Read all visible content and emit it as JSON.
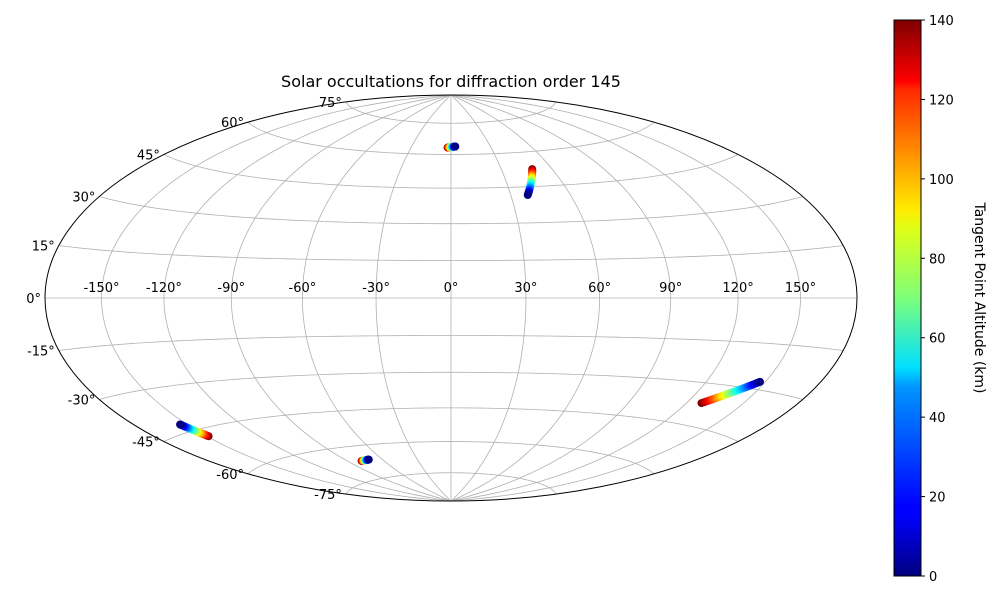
{
  "chart_data": {
    "type": "scatter",
    "projection": "hammer",
    "title": "Solar occultations for diffraction order 145",
    "grid": true,
    "lon_ticks": [
      {
        "value": -150,
        "label": "-150°"
      },
      {
        "value": -120,
        "label": "-120°"
      },
      {
        "value": -90,
        "label": "-90°"
      },
      {
        "value": -60,
        "label": "-60°"
      },
      {
        "value": -30,
        "label": "-30°"
      },
      {
        "value": 0,
        "label": "0°"
      },
      {
        "value": 30,
        "label": "30°"
      },
      {
        "value": 60,
        "label": "60°"
      },
      {
        "value": 90,
        "label": "90°"
      },
      {
        "value": 120,
        "label": "120°"
      },
      {
        "value": 150,
        "label": "150°"
      }
    ],
    "lat_ticks": [
      {
        "value": 75,
        "label": "75°"
      },
      {
        "value": 60,
        "label": "60°"
      },
      {
        "value": 45,
        "label": "45°"
      },
      {
        "value": 30,
        "label": "30°"
      },
      {
        "value": 15,
        "label": "15°"
      },
      {
        "value": 0,
        "label": "0°"
      },
      {
        "value": -15,
        "label": "-15°"
      },
      {
        "value": -30,
        "label": "-30°"
      },
      {
        "value": -45,
        "label": "-45°"
      },
      {
        "value": -60,
        "label": "-60°"
      },
      {
        "value": -75,
        "label": "-75°"
      }
    ],
    "colorbar": {
      "label": "Tangent Point Altitude (km)",
      "colormap": "jet",
      "range": [
        0,
        140
      ],
      "ticks": [
        {
          "value": 0,
          "label": "0"
        },
        {
          "value": 20,
          "label": "20"
        },
        {
          "value": 40,
          "label": "40"
        },
        {
          "value": 60,
          "label": "60"
        },
        {
          "value": 80,
          "label": "80"
        },
        {
          "value": 100,
          "label": "100"
        },
        {
          "value": 120,
          "label": "120"
        },
        {
          "value": 140,
          "label": "140"
        }
      ]
    },
    "occultations": [
      {
        "lon_start": -2.6,
        "lat_start": 63.2,
        "lon_end": 3.3,
        "lat_end": 63.7,
        "alt_start": 140,
        "alt_end": 0
      },
      {
        "lon_start": 38.5,
        "lat_start": 41.5,
        "lon_end": 48.3,
        "lat_end": 52.4,
        "alt_start": 0,
        "alt_end": 140
      },
      {
        "lon_start": 147.2,
        "lat_start": -27.5,
        "lon_end": 127.8,
        "lat_end": -37.0,
        "alt_start": 0,
        "alt_end": 140
      },
      {
        "lon_start": -154.0,
        "lat_start": -42.3,
        "lon_end": -149.0,
        "lat_end": -47.7,
        "alt_start": 0,
        "alt_end": 140
      },
      {
        "lon_start": -71.2,
        "lat_start": -66.4,
        "lon_end": -78.7,
        "lat_end": -66.6,
        "alt_start": 0,
        "alt_end": 140
      }
    ]
  }
}
